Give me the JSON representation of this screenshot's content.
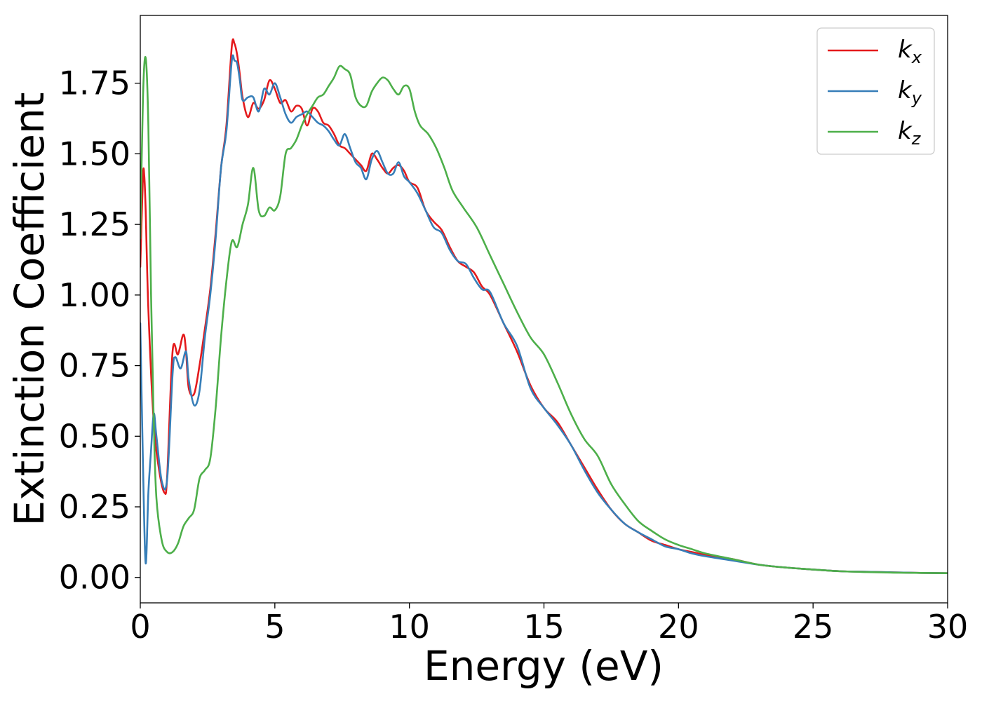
{
  "chart_data": {
    "type": "line",
    "xlabel": "Energy (eV)",
    "ylabel": "Extinction Coefficient",
    "xlim": [
      0,
      30
    ],
    "ylim": [
      -0.09,
      1.99
    ],
    "xticks": [
      0,
      5,
      10,
      15,
      20,
      25,
      30
    ],
    "xtick_labels": [
      "0",
      "5",
      "10",
      "15",
      "20",
      "25",
      "30"
    ],
    "yticks": [
      0.0,
      0.25,
      0.5,
      0.75,
      1.0,
      1.25,
      1.5,
      1.75
    ],
    "ytick_labels": [
      "0.00",
      "0.25",
      "0.50",
      "0.75",
      "1.00",
      "1.25",
      "1.50",
      "1.75"
    ],
    "grid": false,
    "legend_position": "top-right",
    "series": [
      {
        "name": "k_x",
        "label_base": "k",
        "label_sub": "x",
        "color": "#e41a1c",
        "x": [
          0.0,
          0.1,
          0.15,
          0.2,
          0.3,
          0.5,
          0.7,
          0.9,
          1.0,
          1.2,
          1.4,
          1.6,
          1.7,
          1.8,
          2.0,
          2.2,
          2.4,
          2.6,
          2.8,
          3.0,
          3.2,
          3.4,
          3.5,
          3.6,
          3.7,
          3.8,
          4.0,
          4.2,
          4.4,
          4.6,
          4.8,
          5.0,
          5.2,
          5.4,
          5.6,
          5.8,
          6.0,
          6.2,
          6.4,
          6.6,
          6.8,
          7.0,
          7.2,
          7.4,
          7.6,
          7.8,
          8.0,
          8.2,
          8.4,
          8.6,
          8.8,
          9.0,
          9.2,
          9.4,
          9.6,
          9.8,
          10.0,
          10.3,
          10.6,
          10.9,
          11.2,
          11.5,
          11.8,
          12.1,
          12.4,
          12.7,
          13.0,
          13.5,
          14.0,
          14.5,
          15.0,
          15.5,
          16.0,
          16.5,
          17.0,
          17.5,
          18.0,
          18.5,
          19.0,
          19.5,
          20.0,
          20.5,
          21.0,
          22.0,
          23.0,
          24.0,
          25.0,
          26.0,
          27.0,
          28.0,
          29.0,
          30.0
        ],
        "y": [
          1.1,
          1.42,
          1.42,
          1.3,
          0.95,
          0.55,
          0.38,
          0.3,
          0.36,
          0.8,
          0.79,
          0.86,
          0.8,
          0.67,
          0.65,
          0.75,
          0.88,
          1.02,
          1.22,
          1.45,
          1.6,
          1.88,
          1.89,
          1.85,
          1.78,
          1.7,
          1.63,
          1.68,
          1.66,
          1.69,
          1.76,
          1.73,
          1.68,
          1.69,
          1.65,
          1.67,
          1.66,
          1.6,
          1.66,
          1.65,
          1.61,
          1.6,
          1.57,
          1.53,
          1.52,
          1.5,
          1.48,
          1.46,
          1.44,
          1.5,
          1.48,
          1.45,
          1.43,
          1.45,
          1.46,
          1.44,
          1.4,
          1.38,
          1.3,
          1.26,
          1.23,
          1.17,
          1.12,
          1.1,
          1.08,
          1.03,
          1.0,
          0.9,
          0.8,
          0.68,
          0.6,
          0.55,
          0.47,
          0.39,
          0.31,
          0.24,
          0.19,
          0.16,
          0.13,
          0.115,
          0.1,
          0.09,
          0.08,
          0.065,
          0.045,
          0.035,
          0.028,
          0.022,
          0.02,
          0.018,
          0.016,
          0.015
        ]
      },
      {
        "name": "k_y",
        "label_base": "k",
        "label_sub": "y",
        "color": "#377eb8",
        "x": [
          0.0,
          0.1,
          0.2,
          0.3,
          0.4,
          0.5,
          0.6,
          0.8,
          1.0,
          1.2,
          1.3,
          1.5,
          1.7,
          1.8,
          2.0,
          2.2,
          2.4,
          2.6,
          2.8,
          3.0,
          3.2,
          3.4,
          3.5,
          3.6,
          3.7,
          3.8,
          4.0,
          4.2,
          4.4,
          4.6,
          4.8,
          5.0,
          5.2,
          5.4,
          5.6,
          5.8,
          6.0,
          6.2,
          6.4,
          6.6,
          6.8,
          7.0,
          7.2,
          7.4,
          7.6,
          7.8,
          8.0,
          8.2,
          8.4,
          8.6,
          8.8,
          9.0,
          9.2,
          9.4,
          9.6,
          9.8,
          10.0,
          10.3,
          10.6,
          10.9,
          11.2,
          11.5,
          11.8,
          12.1,
          12.4,
          12.7,
          13.0,
          13.5,
          14.0,
          14.5,
          15.0,
          15.5,
          16.0,
          16.5,
          17.0,
          17.5,
          18.0,
          18.5,
          19.0,
          19.5,
          20.0,
          20.5,
          21.0,
          22.0,
          23.0,
          24.0,
          25.0,
          26.0,
          27.0,
          28.0,
          29.0,
          30.0
        ],
        "y": [
          0.9,
          0.4,
          0.05,
          0.3,
          0.45,
          0.58,
          0.5,
          0.34,
          0.35,
          0.72,
          0.78,
          0.74,
          0.8,
          0.7,
          0.61,
          0.66,
          0.85,
          1.0,
          1.2,
          1.45,
          1.58,
          1.83,
          1.83,
          1.82,
          1.76,
          1.69,
          1.7,
          1.7,
          1.65,
          1.73,
          1.71,
          1.75,
          1.7,
          1.64,
          1.61,
          1.63,
          1.64,
          1.65,
          1.63,
          1.61,
          1.6,
          1.58,
          1.55,
          1.53,
          1.57,
          1.52,
          1.47,
          1.45,
          1.41,
          1.48,
          1.51,
          1.47,
          1.43,
          1.43,
          1.47,
          1.42,
          1.4,
          1.36,
          1.3,
          1.24,
          1.22,
          1.16,
          1.12,
          1.11,
          1.06,
          1.02,
          1.01,
          0.9,
          0.82,
          0.67,
          0.6,
          0.54,
          0.47,
          0.38,
          0.3,
          0.24,
          0.19,
          0.16,
          0.135,
          0.11,
          0.1,
          0.085,
          0.075,
          0.06,
          0.045,
          0.035,
          0.028,
          0.022,
          0.02,
          0.018,
          0.016,
          0.015
        ]
      },
      {
        "name": "k_z",
        "label_base": "k",
        "label_sub": "z",
        "color": "#4daf4a",
        "x": [
          0.0,
          0.1,
          0.2,
          0.3,
          0.4,
          0.5,
          0.6,
          0.8,
          1.0,
          1.2,
          1.4,
          1.6,
          1.8,
          2.0,
          2.2,
          2.4,
          2.6,
          2.8,
          3.0,
          3.2,
          3.4,
          3.6,
          3.8,
          4.0,
          4.2,
          4.4,
          4.6,
          4.8,
          5.0,
          5.2,
          5.4,
          5.6,
          5.8,
          6.0,
          6.2,
          6.4,
          6.6,
          6.8,
          7.0,
          7.2,
          7.4,
          7.6,
          7.8,
          8.0,
          8.2,
          8.4,
          8.6,
          8.8,
          9.0,
          9.2,
          9.4,
          9.6,
          9.8,
          10.0,
          10.2,
          10.4,
          10.7,
          11.0,
          11.3,
          11.6,
          12.0,
          12.5,
          13.0,
          13.5,
          14.0,
          14.5,
          15.0,
          15.5,
          16.0,
          16.5,
          17.0,
          17.5,
          18.0,
          18.5,
          19.0,
          19.5,
          20.0,
          20.5,
          21.0,
          22.0,
          23.0,
          24.0,
          25.0,
          26.0,
          27.0,
          28.0,
          29.0,
          30.0
        ],
        "y": [
          1.2,
          1.7,
          1.84,
          1.6,
          1.0,
          0.55,
          0.28,
          0.13,
          0.09,
          0.09,
          0.12,
          0.18,
          0.21,
          0.24,
          0.35,
          0.38,
          0.42,
          0.6,
          0.85,
          1.05,
          1.19,
          1.17,
          1.25,
          1.32,
          1.45,
          1.3,
          1.28,
          1.31,
          1.3,
          1.35,
          1.5,
          1.52,
          1.55,
          1.6,
          1.64,
          1.67,
          1.7,
          1.71,
          1.74,
          1.77,
          1.81,
          1.8,
          1.78,
          1.7,
          1.67,
          1.67,
          1.72,
          1.75,
          1.77,
          1.76,
          1.73,
          1.71,
          1.74,
          1.73,
          1.65,
          1.6,
          1.57,
          1.52,
          1.45,
          1.37,
          1.31,
          1.24,
          1.14,
          1.04,
          0.94,
          0.85,
          0.79,
          0.69,
          0.58,
          0.49,
          0.43,
          0.33,
          0.26,
          0.2,
          0.165,
          0.135,
          0.115,
          0.1,
          0.085,
          0.065,
          0.045,
          0.035,
          0.028,
          0.022,
          0.019,
          0.017,
          0.016,
          0.015
        ]
      }
    ]
  }
}
